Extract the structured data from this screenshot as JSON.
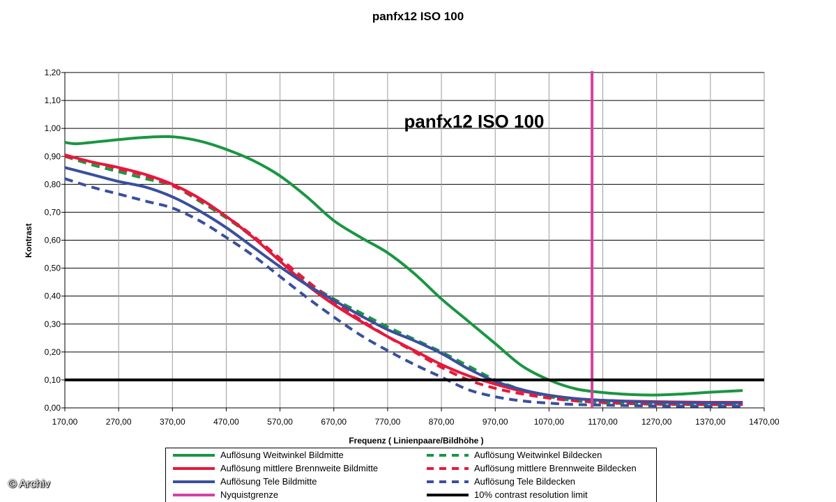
{
  "watermark": "© Archiv",
  "chart_data": {
    "type": "line",
    "title": "panfx12 ISO 100",
    "annotation": "panfx12 ISO 100",
    "xlabel": "Frequenz ( Linienpaare/Bildhöhe )",
    "ylabel": "Kontrast",
    "xlim": [
      170,
      1470
    ],
    "ylim": [
      0,
      1.2
    ],
    "x_ticks": [
      "170,00",
      "270,00",
      "370,00",
      "470,00",
      "570,00",
      "670,00",
      "770,00",
      "870,00",
      "970,00",
      "1070,00",
      "1170,00",
      "1270,00",
      "1370,00",
      "1470,00"
    ],
    "y_ticks": [
      "0,00",
      "0,10",
      "0,20",
      "0,30",
      "0,40",
      "0,50",
      "0,60",
      "0,70",
      "0,80",
      "0,90",
      "1,00",
      "1,10",
      "1,20"
    ],
    "grid": true,
    "legend_position": "bottom",
    "series": [
      {
        "name": "Auflösung Weitwinkel Bildmitte",
        "color": "#1a9641",
        "dash": "solid",
        "points": [
          [
            170,
            0.95
          ],
          [
            190,
            0.945
          ],
          [
            220,
            0.95
          ],
          [
            270,
            0.96
          ],
          [
            320,
            0.968
          ],
          [
            370,
            0.97
          ],
          [
            420,
            0.955
          ],
          [
            470,
            0.925
          ],
          [
            520,
            0.885
          ],
          [
            570,
            0.83
          ],
          [
            620,
            0.755
          ],
          [
            670,
            0.67
          ],
          [
            720,
            0.61
          ],
          [
            770,
            0.555
          ],
          [
            820,
            0.48
          ],
          [
            870,
            0.39
          ],
          [
            920,
            0.31
          ],
          [
            970,
            0.23
          ],
          [
            1020,
            0.15
          ],
          [
            1070,
            0.1
          ],
          [
            1120,
            0.068
          ],
          [
            1170,
            0.055
          ],
          [
            1220,
            0.048
          ],
          [
            1270,
            0.046
          ],
          [
            1320,
            0.05
          ],
          [
            1370,
            0.056
          ],
          [
            1430,
            0.062
          ]
        ]
      },
      {
        "name": "Auflösung Weitwinkel Bildecken",
        "color": "#1a9641",
        "dash": "dashed",
        "points": [
          [
            170,
            0.9
          ],
          [
            220,
            0.87
          ],
          [
            270,
            0.845
          ],
          [
            320,
            0.82
          ],
          [
            370,
            0.795
          ],
          [
            420,
            0.74
          ],
          [
            470,
            0.68
          ],
          [
            520,
            0.61
          ],
          [
            570,
            0.53
          ],
          [
            620,
            0.45
          ],
          [
            670,
            0.39
          ],
          [
            720,
            0.34
          ],
          [
            770,
            0.29
          ],
          [
            820,
            0.245
          ],
          [
            870,
            0.2
          ],
          [
            920,
            0.15
          ],
          [
            970,
            0.1
          ],
          [
            1020,
            0.065
          ],
          [
            1070,
            0.04
          ],
          [
            1120,
            0.025
          ],
          [
            1170,
            0.018
          ],
          [
            1220,
            0.015
          ],
          [
            1270,
            0.013
          ],
          [
            1320,
            0.012
          ],
          [
            1370,
            0.012
          ],
          [
            1430,
            0.012
          ]
        ]
      },
      {
        "name": "Auflösung mittlere Brennweite Bildmitte",
        "color": "#e31a3c",
        "dash": "solid",
        "points": [
          [
            170,
            0.905
          ],
          [
            220,
            0.88
          ],
          [
            270,
            0.86
          ],
          [
            320,
            0.835
          ],
          [
            370,
            0.8
          ],
          [
            420,
            0.75
          ],
          [
            470,
            0.685
          ],
          [
            520,
            0.61
          ],
          [
            570,
            0.525
          ],
          [
            620,
            0.44
          ],
          [
            670,
            0.37
          ],
          [
            720,
            0.31
          ],
          [
            770,
            0.255
          ],
          [
            820,
            0.205
          ],
          [
            870,
            0.155
          ],
          [
            920,
            0.115
          ],
          [
            970,
            0.085
          ],
          [
            1020,
            0.06
          ],
          [
            1070,
            0.045
          ],
          [
            1120,
            0.033
          ],
          [
            1170,
            0.027
          ],
          [
            1220,
            0.024
          ],
          [
            1270,
            0.022
          ],
          [
            1320,
            0.021
          ],
          [
            1370,
            0.02
          ],
          [
            1430,
            0.02
          ]
        ]
      },
      {
        "name": "Auflösung mittlere Brennweite Bildecken",
        "color": "#e31a3c",
        "dash": "dashed",
        "points": [
          [
            170,
            0.9
          ],
          [
            220,
            0.88
          ],
          [
            270,
            0.855
          ],
          [
            320,
            0.83
          ],
          [
            370,
            0.795
          ],
          [
            420,
            0.745
          ],
          [
            470,
            0.685
          ],
          [
            520,
            0.615
          ],
          [
            570,
            0.535
          ],
          [
            620,
            0.455
          ],
          [
            670,
            0.38
          ],
          [
            720,
            0.315
          ],
          [
            770,
            0.255
          ],
          [
            820,
            0.2
          ],
          [
            870,
            0.145
          ],
          [
            920,
            0.1
          ],
          [
            970,
            0.07
          ],
          [
            1020,
            0.05
          ],
          [
            1070,
            0.035
          ],
          [
            1120,
            0.025
          ],
          [
            1170,
            0.02
          ],
          [
            1220,
            0.016
          ],
          [
            1270,
            0.014
          ],
          [
            1320,
            0.013
          ],
          [
            1370,
            0.012
          ],
          [
            1430,
            0.012
          ]
        ]
      },
      {
        "name": "Auflösung Tele Bildmitte",
        "color": "#3a4f9e",
        "dash": "solid",
        "points": [
          [
            170,
            0.86
          ],
          [
            220,
            0.835
          ],
          [
            270,
            0.81
          ],
          [
            320,
            0.79
          ],
          [
            370,
            0.755
          ],
          [
            420,
            0.705
          ],
          [
            470,
            0.645
          ],
          [
            520,
            0.575
          ],
          [
            570,
            0.505
          ],
          [
            620,
            0.44
          ],
          [
            670,
            0.385
          ],
          [
            720,
            0.33
          ],
          [
            770,
            0.28
          ],
          [
            820,
            0.24
          ],
          [
            870,
            0.195
          ],
          [
            920,
            0.14
          ],
          [
            970,
            0.095
          ],
          [
            1020,
            0.065
          ],
          [
            1070,
            0.045
          ],
          [
            1120,
            0.033
          ],
          [
            1170,
            0.027
          ],
          [
            1220,
            0.023
          ],
          [
            1270,
            0.02
          ],
          [
            1320,
            0.019
          ],
          [
            1370,
            0.018
          ],
          [
            1430,
            0.018
          ]
        ]
      },
      {
        "name": "Auflösung Tele Bildecken",
        "color": "#3a4f9e",
        "dash": "dashed",
        "points": [
          [
            170,
            0.82
          ],
          [
            220,
            0.79
          ],
          [
            270,
            0.765
          ],
          [
            320,
            0.74
          ],
          [
            370,
            0.715
          ],
          [
            420,
            0.67
          ],
          [
            470,
            0.61
          ],
          [
            520,
            0.545
          ],
          [
            570,
            0.47
          ],
          [
            620,
            0.395
          ],
          [
            670,
            0.325
          ],
          [
            720,
            0.26
          ],
          [
            770,
            0.205
          ],
          [
            820,
            0.155
          ],
          [
            870,
            0.11
          ],
          [
            920,
            0.065
          ],
          [
            970,
            0.04
          ],
          [
            1020,
            0.025
          ],
          [
            1070,
            0.017
          ],
          [
            1120,
            0.012
          ],
          [
            1170,
            0.01
          ],
          [
            1220,
            0.008
          ],
          [
            1270,
            0.007
          ],
          [
            1320,
            0.006
          ],
          [
            1370,
            0.006
          ],
          [
            1430,
            0.006
          ]
        ]
      },
      {
        "name": "Nyquistgrenze",
        "color": "#d63fa3",
        "dash": "solid",
        "vertical_at": 1150
      },
      {
        "name": "10% contrast resolution limit",
        "color": "#000000",
        "dash": "solid",
        "horizontal_at": 0.1
      }
    ]
  }
}
